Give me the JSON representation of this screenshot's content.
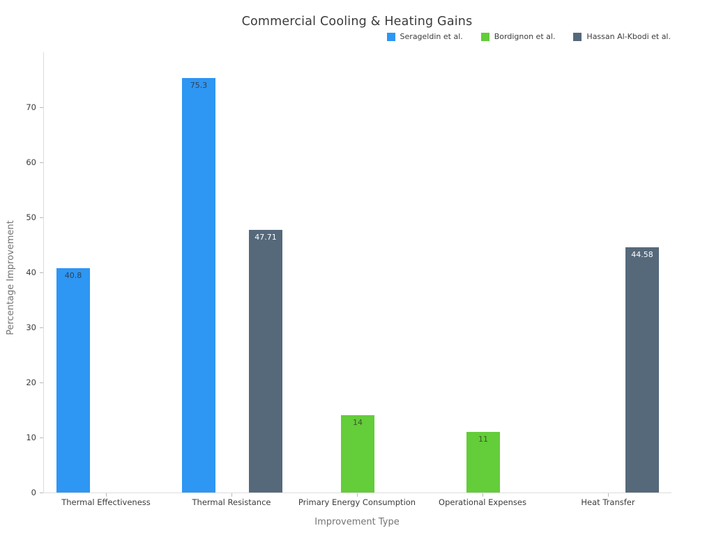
{
  "chart_data": {
    "type": "bar",
    "title": "Commercial Cooling & Heating Gains",
    "xlabel": "Improvement Type",
    "ylabel": "Percentage Improvement",
    "ylim": [
      0,
      80
    ],
    "yticks": [
      0,
      10,
      20,
      30,
      40,
      50,
      60,
      70
    ],
    "grid": false,
    "legend_position": "top-right",
    "value_labels": "inside-top",
    "categories": [
      "Thermal Effectiveness",
      "Thermal Resistance",
      "Primary Energy Consumption",
      "Operational Expenses",
      "Heat Transfer"
    ],
    "series": [
      {
        "name": "Serageldin et al.",
        "color": "#2E96F3",
        "label_color": "#2F4153",
        "values": [
          40.8,
          75.3,
          null,
          null,
          null
        ]
      },
      {
        "name": "Bordignon et al.",
        "color": "#63CD3A",
        "label_color": "#3A5723",
        "values": [
          null,
          null,
          14,
          11,
          null
        ]
      },
      {
        "name": "Hassan Al-Kbodi et al.",
        "color": "#55697B",
        "label_color": "#FFFFFF",
        "values": [
          null,
          47.71,
          null,
          null,
          44.58
        ]
      }
    ]
  }
}
